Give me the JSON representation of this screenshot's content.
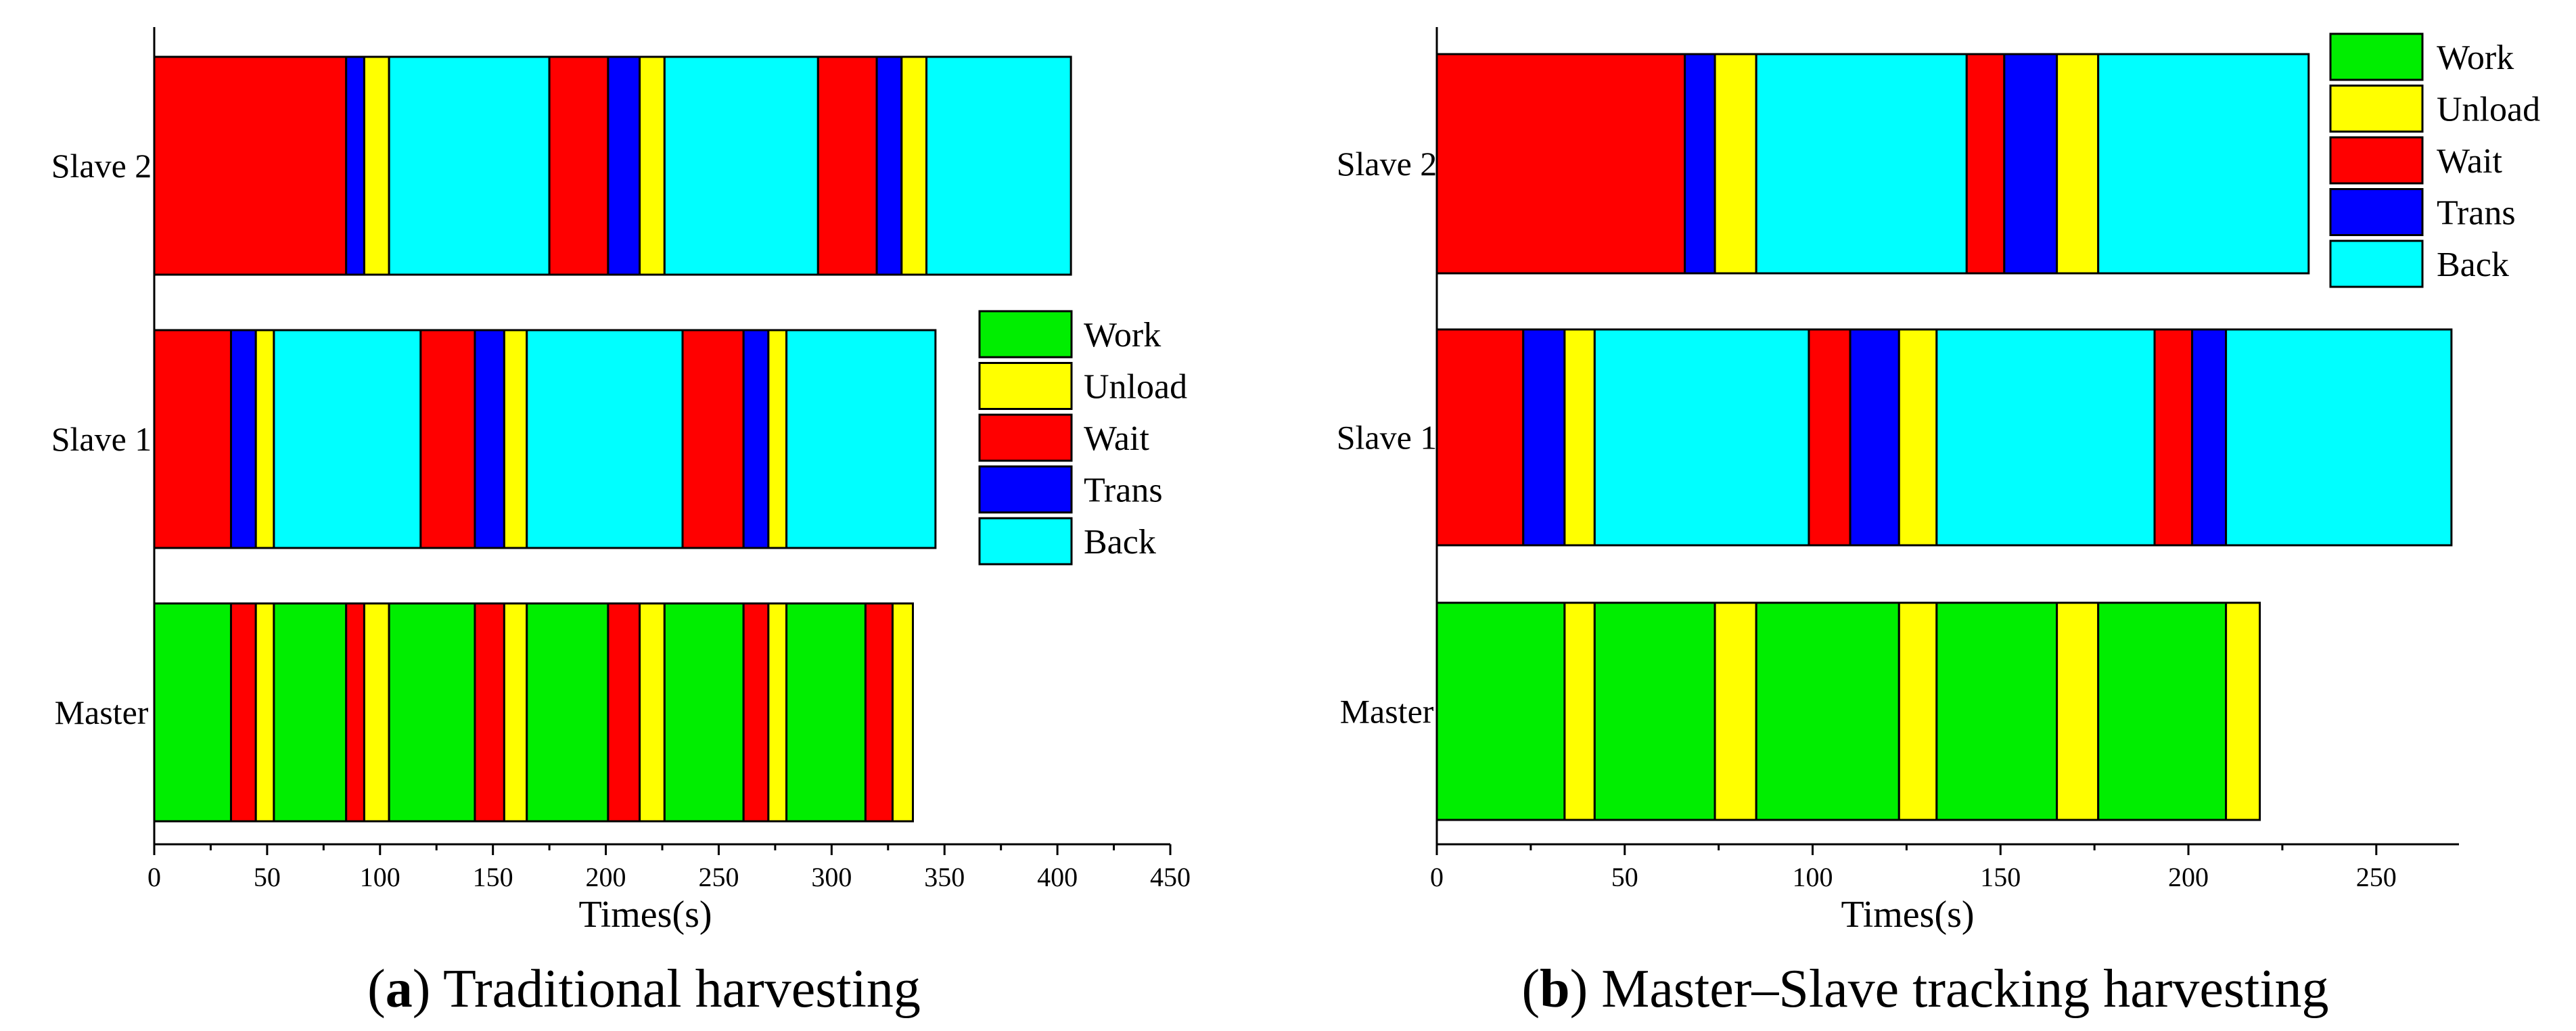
{
  "legend": [
    {
      "key": "Work",
      "label": "Work",
      "color": "#00ee00"
    },
    {
      "key": "Unload",
      "label": "Unload",
      "color": "#ffff00"
    },
    {
      "key": "Wait",
      "label": "Wait",
      "color": "#ff0000"
    },
    {
      "key": "Trans",
      "label": "Trans",
      "color": "#0000ff"
    },
    {
      "key": "Back",
      "label": "Back",
      "color": "#00ffff"
    }
  ],
  "chart_data": [
    {
      "id": "a",
      "type": "bar",
      "orientation": "horizontal-stacked",
      "caption_letter": "a",
      "caption_text": "Traditional harvesting",
      "xlabel": "Times(s)",
      "xlim": [
        0,
        450
      ],
      "xticks": [
        0,
        50,
        100,
        150,
        200,
        250,
        300,
        350,
        400,
        450
      ],
      "legend_position": "center-right",
      "categories": [
        "Master",
        "Slave 1",
        "Slave 2"
      ],
      "rows": [
        {
          "name": "Master",
          "segments": [
            {
              "type": "Work",
              "start": 0,
              "end": 34
            },
            {
              "type": "Wait",
              "start": 34,
              "end": 45
            },
            {
              "type": "Unload",
              "start": 45,
              "end": 53
            },
            {
              "type": "Work",
              "start": 53,
              "end": 85
            },
            {
              "type": "Wait",
              "start": 85,
              "end": 93
            },
            {
              "type": "Unload",
              "start": 93,
              "end": 104
            },
            {
              "type": "Work",
              "start": 104,
              "end": 142
            },
            {
              "type": "Wait",
              "start": 142,
              "end": 155
            },
            {
              "type": "Unload",
              "start": 155,
              "end": 165
            },
            {
              "type": "Work",
              "start": 165,
              "end": 201
            },
            {
              "type": "Wait",
              "start": 201,
              "end": 215
            },
            {
              "type": "Unload",
              "start": 215,
              "end": 226
            },
            {
              "type": "Work",
              "start": 226,
              "end": 261
            },
            {
              "type": "Wait",
              "start": 261,
              "end": 272
            },
            {
              "type": "Unload",
              "start": 272,
              "end": 280
            },
            {
              "type": "Work",
              "start": 280,
              "end": 315
            },
            {
              "type": "Wait",
              "start": 315,
              "end": 327
            },
            {
              "type": "Unload",
              "start": 327,
              "end": 336
            }
          ]
        },
        {
          "name": "Slave 1",
          "segments": [
            {
              "type": "Wait",
              "start": 0,
              "end": 34
            },
            {
              "type": "Trans",
              "start": 34,
              "end": 45
            },
            {
              "type": "Unload",
              "start": 45,
              "end": 53
            },
            {
              "type": "Back",
              "start": 53,
              "end": 118
            },
            {
              "type": "Wait",
              "start": 118,
              "end": 142
            },
            {
              "type": "Trans",
              "start": 142,
              "end": 155
            },
            {
              "type": "Unload",
              "start": 155,
              "end": 165
            },
            {
              "type": "Back",
              "start": 165,
              "end": 234
            },
            {
              "type": "Wait",
              "start": 234,
              "end": 261
            },
            {
              "type": "Trans",
              "start": 261,
              "end": 272
            },
            {
              "type": "Unload",
              "start": 272,
              "end": 280
            },
            {
              "type": "Back",
              "start": 280,
              "end": 346
            }
          ]
        },
        {
          "name": "Slave 2",
          "segments": [
            {
              "type": "Wait",
              "start": 0,
              "end": 85
            },
            {
              "type": "Trans",
              "start": 85,
              "end": 93
            },
            {
              "type": "Unload",
              "start": 93,
              "end": 104
            },
            {
              "type": "Back",
              "start": 104,
              "end": 175
            },
            {
              "type": "Wait",
              "start": 175,
              "end": 201
            },
            {
              "type": "Trans",
              "start": 201,
              "end": 215
            },
            {
              "type": "Unload",
              "start": 215,
              "end": 226
            },
            {
              "type": "Back",
              "start": 226,
              "end": 294
            },
            {
              "type": "Wait",
              "start": 294,
              "end": 320
            },
            {
              "type": "Trans",
              "start": 320,
              "end": 331
            },
            {
              "type": "Unload",
              "start": 331,
              "end": 342
            },
            {
              "type": "Back",
              "start": 342,
              "end": 406
            }
          ]
        }
      ]
    },
    {
      "id": "b",
      "type": "bar",
      "orientation": "horizontal-stacked",
      "caption_letter": "b",
      "caption_text": "Master–Slave tracking harvesting",
      "xlabel": "Times(s)",
      "xlim": [
        0,
        272
      ],
      "xticks": [
        0,
        50,
        100,
        150,
        200,
        250
      ],
      "legend_position": "top-right",
      "categories": [
        "Master",
        "Slave 1",
        "Slave 2"
      ],
      "rows": [
        {
          "name": "Master",
          "segments": [
            {
              "type": "Work",
              "start": 0,
              "end": 34
            },
            {
              "type": "Unload",
              "start": 34,
              "end": 42
            },
            {
              "type": "Work",
              "start": 42,
              "end": 74
            },
            {
              "type": "Unload",
              "start": 74,
              "end": 85
            },
            {
              "type": "Work",
              "start": 85,
              "end": 123
            },
            {
              "type": "Unload",
              "start": 123,
              "end": 133
            },
            {
              "type": "Work",
              "start": 133,
              "end": 165
            },
            {
              "type": "Unload",
              "start": 165,
              "end": 176
            },
            {
              "type": "Work",
              "start": 176,
              "end": 210
            },
            {
              "type": "Unload",
              "start": 210,
              "end": 219
            }
          ]
        },
        {
          "name": "Slave 1",
          "segments": [
            {
              "type": "Wait",
              "start": 0,
              "end": 23
            },
            {
              "type": "Trans",
              "start": 23,
              "end": 34
            },
            {
              "type": "Unload",
              "start": 34,
              "end": 42
            },
            {
              "type": "Back",
              "start": 42,
              "end": 99
            },
            {
              "type": "Wait",
              "start": 99,
              "end": 110
            },
            {
              "type": "Trans",
              "start": 110,
              "end": 123
            },
            {
              "type": "Unload",
              "start": 123,
              "end": 133
            },
            {
              "type": "Back",
              "start": 133,
              "end": 191
            },
            {
              "type": "Wait",
              "start": 191,
              "end": 201
            },
            {
              "type": "Trans",
              "start": 201,
              "end": 210
            },
            {
              "type": "Back",
              "start": 210,
              "end": 270
            }
          ]
        },
        {
          "name": "Slave 2",
          "segments": [
            {
              "type": "Wait",
              "start": 0,
              "end": 66
            },
            {
              "type": "Trans",
              "start": 66,
              "end": 74
            },
            {
              "type": "Unload",
              "start": 74,
              "end": 85
            },
            {
              "type": "Back",
              "start": 85,
              "end": 141
            },
            {
              "type": "Wait",
              "start": 141,
              "end": 151
            },
            {
              "type": "Trans",
              "start": 151,
              "end": 165
            },
            {
              "type": "Unload",
              "start": 165,
              "end": 176
            },
            {
              "type": "Back",
              "start": 176,
              "end": 232
            }
          ]
        }
      ]
    }
  ]
}
